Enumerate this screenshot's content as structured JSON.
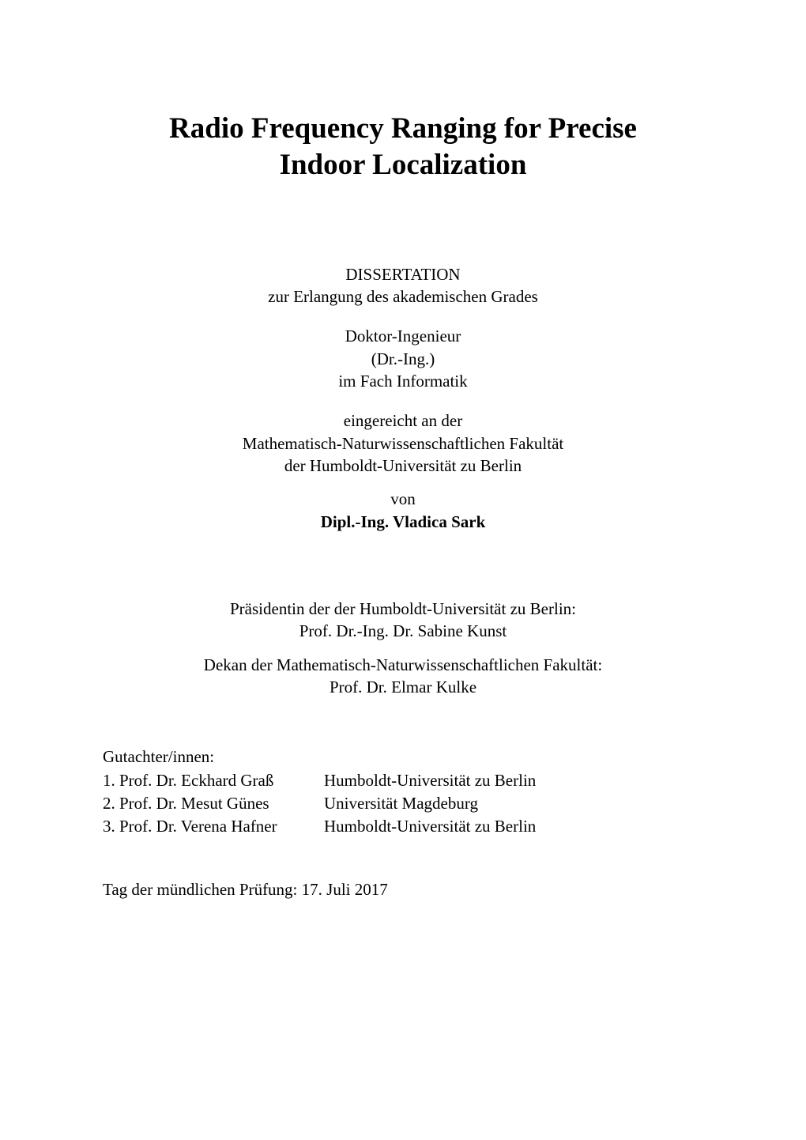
{
  "title": {
    "line1": "Radio Frequency Ranging for Precise",
    "line2": "Indoor Localization"
  },
  "doc_type": "DISSERTATION",
  "purpose": "zur Erlangung des akademischen Grades",
  "degree": {
    "line1": "Doktor-Ingenieur",
    "line2": "(Dr.-Ing.)",
    "line3": "im Fach Informatik"
  },
  "submitted": {
    "line1": "eingereicht an der",
    "line2": "Mathematisch-Naturwissenschaftlichen Fakultät",
    "line3": "der Humboldt-Universität zu Berlin"
  },
  "author": {
    "von": "von",
    "name": "Dipl.-Ing. Vladica Sark"
  },
  "president": {
    "label": "Präsidentin der der Humboldt-Universität zu Berlin:",
    "name": "Prof. Dr.-Ing. Dr. Sabine Kunst"
  },
  "dean": {
    "label": "Dekan der Mathematisch-Naturwissenschaftlichen Fakultät:",
    "name": "Prof. Dr. Elmar Kulke"
  },
  "reviewers": {
    "label": "Gutachter/innen:",
    "items": [
      {
        "idx": "1.",
        "name": "Prof. Dr. Eckhard Graß",
        "affiliation": "Humboldt-Universität zu Berlin"
      },
      {
        "idx": "2.",
        "name": "Prof. Dr. Mesut Günes",
        "affiliation": "Universität Magdeburg"
      },
      {
        "idx": "3.",
        "name": "Prof. Dr. Verena Hafner",
        "affiliation": "Humboldt-Universität zu Berlin"
      }
    ]
  },
  "defense": "Tag der mündlichen Prüfung: 17. Juli 2017"
}
